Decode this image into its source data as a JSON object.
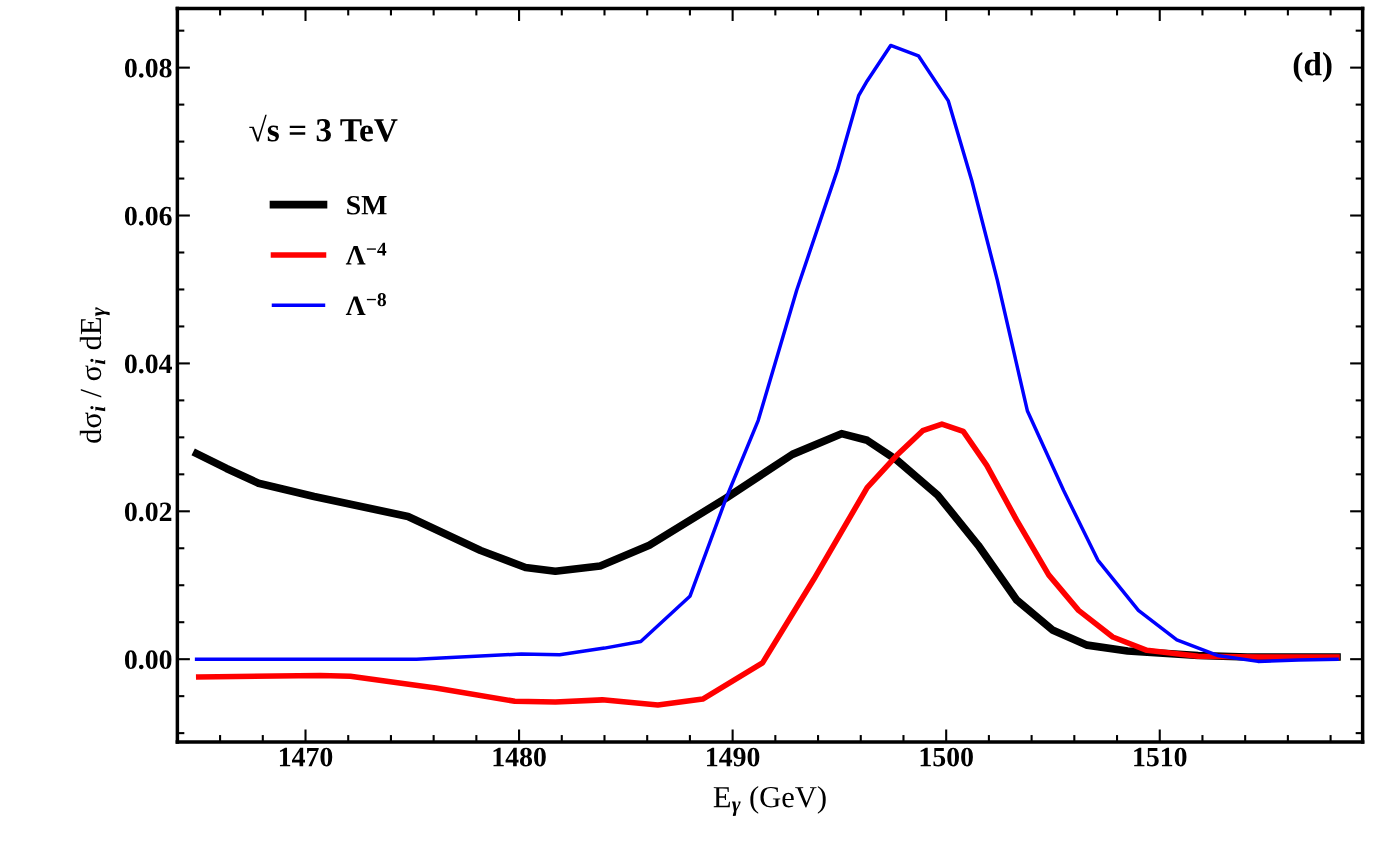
{
  "chart_data": {
    "type": "line",
    "xlabel": "E$_{γ}$ (GeV)",
    "ylabel": "dσ$_{i}$ / σ$_{i}$ dE$_{γ}$",
    "annotations": [
      "(d)",
      "√s = 3 TeV"
    ],
    "xlim": [
      1464,
      1519.5
    ],
    "ylim": [
      -0.0112,
      0.088
    ],
    "xticks": [
      1470,
      1480,
      1490,
      1500,
      1510
    ],
    "yticks": [
      {
        "value": 0,
        "label": "0.00"
      },
      {
        "value": 0.02,
        "label": "0.02"
      },
      {
        "value": 0.04,
        "label": "0.04"
      },
      {
        "value": 0.06,
        "label": "0.06"
      },
      {
        "value": 0.08,
        "label": "0.08"
      }
    ],
    "grid": false,
    "legend": "top left",
    "line_style": "solid",
    "marker": "none",
    "series": [
      {
        "name": "SM",
        "color": "#000000",
        "x": [
          1464.9,
          1466.3,
          1467.8,
          1470.4,
          1474.8,
          1478.2,
          1480.3,
          1481.7,
          1483.8,
          1486.1,
          1489.7,
          1492.8,
          1495.1,
          1496.3,
          1497.7,
          1499.6,
          1501.5,
          1503.3,
          1505.0,
          1506.6,
          1508.5,
          1511.8,
          1514.1,
          1518.3
        ],
        "values": [
          0.0278,
          0.0258,
          0.0238,
          0.022,
          0.0193,
          0.0147,
          0.0124,
          0.0119,
          0.0126,
          0.0154,
          0.0218,
          0.0277,
          0.0305,
          0.0296,
          0.0269,
          0.0222,
          0.0154,
          0.008,
          0.0039,
          0.0019,
          0.0011,
          0.0005,
          0.0003,
          0.0003
        ]
      },
      {
        "name": "Λ$^{−4}$",
        "color": "#ff0000",
        "x": [
          1465.0,
          1470.7,
          1472.1,
          1476.1,
          1479.8,
          1481.7,
          1483.9,
          1486.5,
          1488.6,
          1491.4,
          1493.8,
          1496.3,
          1497.7,
          1498.9,
          1499.8,
          1500.8,
          1501.9,
          1503.3,
          1504.8,
          1506.2,
          1507.8,
          1509.4,
          1511.8,
          1514.6,
          1518.3
        ],
        "values": [
          -0.0024,
          -0.0022,
          -0.0023,
          -0.0039,
          -0.0057,
          -0.0058,
          -0.0055,
          -0.0062,
          -0.0054,
          -0.0005,
          0.0108,
          0.0232,
          0.0276,
          0.0309,
          0.0318,
          0.0308,
          0.0262,
          0.0188,
          0.0114,
          0.0066,
          0.003,
          0.0012,
          0.0004,
          0.0003,
          0.0003
        ]
      },
      {
        "name": "Λ$^{−8}$",
        "color": "#0000ff",
        "x": [
          1464.9,
          1475.2,
          1480.1,
          1481.9,
          1484.0,
          1485.7,
          1488.0,
          1489.7,
          1491.2,
          1493.0,
          1494.9,
          1495.9,
          1496.3,
          1497.4,
          1498.7,
          1500.1,
          1501.2,
          1502.4,
          1503.8,
          1505.5,
          1507.1,
          1509.0,
          1510.8,
          1512.7,
          1514.6,
          1516.5,
          1518.3
        ],
        "values": [
          0.0,
          0.0,
          0.0007,
          0.0006,
          0.0015,
          0.0024,
          0.0085,
          0.0218,
          0.0323,
          0.0499,
          0.0661,
          0.0762,
          0.0782,
          0.083,
          0.0816,
          0.0755,
          0.0647,
          0.0512,
          0.0336,
          0.0228,
          0.0134,
          0.0066,
          0.0026,
          0.0005,
          -0.0003,
          -0.0001,
          0.0
        ]
      }
    ]
  }
}
